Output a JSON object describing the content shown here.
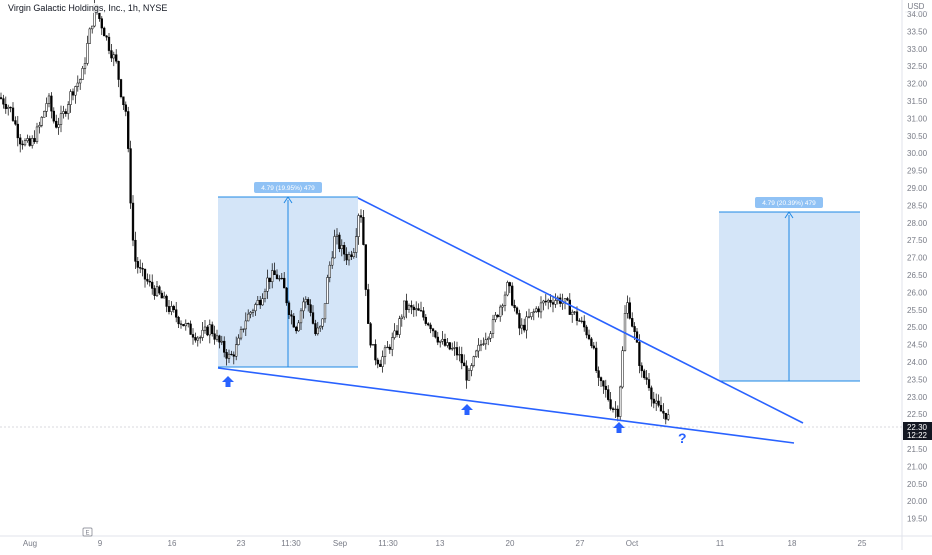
{
  "header": {
    "symbol_title": "Virgin Galactic Holdings, Inc., 1h, NYSE"
  },
  "price_axis": {
    "currency": "USD",
    "last_price": "22.30",
    "countdown": "12:22"
  },
  "colors": {
    "accent": "#2962ff",
    "measure_fill": "#cfe2f7",
    "measure_line": "#1e88e5",
    "candle": "#000000",
    "price_tag": "#131722"
  },
  "chart_data": {
    "type": "candlestick",
    "title": "Virgin Galactic Holdings, Inc., 1h, NYSE",
    "ylim": [
      19.2,
      35.0
    ],
    "y_ticks": [
      "34.00",
      "33.50",
      "33.00",
      "32.50",
      "32.00",
      "31.50",
      "31.00",
      "30.50",
      "30.00",
      "29.50",
      "29.00",
      "28.50",
      "28.00",
      "27.50",
      "27.00",
      "26.50",
      "26.00",
      "25.50",
      "25.00",
      "24.50",
      "24.00",
      "23.50",
      "23.00",
      "22.50",
      "22.00",
      "21.50",
      "21.00",
      "20.50",
      "20.00",
      "19.50"
    ],
    "x_ticks": [
      "Aug",
      "9",
      "16",
      "23",
      "11:30",
      "Sep",
      "11:30",
      "13",
      "20",
      "27",
      "Oct",
      "11",
      "18",
      "25"
    ],
    "last_price": 22.3,
    "price_path": [
      {
        "x": 0,
        "p": 31.6
      },
      {
        "x": 10,
        "p": 31.3
      },
      {
        "x": 20,
        "p": 30.4
      },
      {
        "x": 30,
        "p": 30.2
      },
      {
        "x": 40,
        "p": 30.8
      },
      {
        "x": 48,
        "p": 31.6
      },
      {
        "x": 55,
        "p": 30.8
      },
      {
        "x": 62,
        "p": 31.0
      },
      {
        "x": 72,
        "p": 31.8
      },
      {
        "x": 82,
        "p": 32.2
      },
      {
        "x": 88,
        "p": 33.2
      },
      {
        "x": 95,
        "p": 34.2
      },
      {
        "x": 103,
        "p": 33.6
      },
      {
        "x": 110,
        "p": 33.0
      },
      {
        "x": 116,
        "p": 32.6
      },
      {
        "x": 122,
        "p": 31.6
      },
      {
        "x": 126,
        "p": 31.2
      },
      {
        "x": 130,
        "p": 29.0
      },
      {
        "x": 134,
        "p": 27.0
      },
      {
        "x": 140,
        "p": 26.6
      },
      {
        "x": 150,
        "p": 26.2
      },
      {
        "x": 160,
        "p": 25.9
      },
      {
        "x": 170,
        "p": 25.5
      },
      {
        "x": 180,
        "p": 25.2
      },
      {
        "x": 190,
        "p": 24.9
      },
      {
        "x": 200,
        "p": 24.7
      },
      {
        "x": 210,
        "p": 25.0
      },
      {
        "x": 218,
        "p": 24.6
      },
      {
        "x": 225,
        "p": 24.3
      },
      {
        "x": 230,
        "p": 24.1
      },
      {
        "x": 238,
        "p": 24.5
      },
      {
        "x": 245,
        "p": 25.2
      },
      {
        "x": 252,
        "p": 25.5
      },
      {
        "x": 260,
        "p": 25.8
      },
      {
        "x": 268,
        "p": 26.4
      },
      {
        "x": 276,
        "p": 26.5
      },
      {
        "x": 283,
        "p": 26.2
      },
      {
        "x": 290,
        "p": 25.4
      },
      {
        "x": 296,
        "p": 25.0
      },
      {
        "x": 304,
        "p": 25.8
      },
      {
        "x": 310,
        "p": 25.6
      },
      {
        "x": 315,
        "p": 24.8
      },
      {
        "x": 322,
        "p": 25.0
      },
      {
        "x": 328,
        "p": 26.5
      },
      {
        "x": 335,
        "p": 27.6
      },
      {
        "x": 342,
        "p": 27.2
      },
      {
        "x": 348,
        "p": 27.0
      },
      {
        "x": 354,
        "p": 27.3
      },
      {
        "x": 360,
        "p": 28.6
      },
      {
        "x": 364,
        "p": 27.2
      },
      {
        "x": 368,
        "p": 25.0
      },
      {
        "x": 374,
        "p": 24.2
      },
      {
        "x": 380,
        "p": 24.0
      },
      {
        "x": 388,
        "p": 24.4
      },
      {
        "x": 396,
        "p": 24.8
      },
      {
        "x": 404,
        "p": 25.6
      },
      {
        "x": 412,
        "p": 25.5
      },
      {
        "x": 420,
        "p": 25.4
      },
      {
        "x": 430,
        "p": 25.1
      },
      {
        "x": 440,
        "p": 24.6
      },
      {
        "x": 448,
        "p": 24.4
      },
      {
        "x": 456,
        "p": 24.3
      },
      {
        "x": 462,
        "p": 24.0
      },
      {
        "x": 468,
        "p": 23.5
      },
      {
        "x": 476,
        "p": 24.2
      },
      {
        "x": 484,
        "p": 24.7
      },
      {
        "x": 492,
        "p": 25.0
      },
      {
        "x": 500,
        "p": 25.6
      },
      {
        "x": 508,
        "p": 26.2
      },
      {
        "x": 514,
        "p": 25.6
      },
      {
        "x": 520,
        "p": 24.9
      },
      {
        "x": 528,
        "p": 25.2
      },
      {
        "x": 536,
        "p": 25.5
      },
      {
        "x": 544,
        "p": 25.7
      },
      {
        "x": 552,
        "p": 25.8
      },
      {
        "x": 560,
        "p": 25.8
      },
      {
        "x": 568,
        "p": 25.6
      },
      {
        "x": 576,
        "p": 25.3
      },
      {
        "x": 584,
        "p": 25.0
      },
      {
        "x": 592,
        "p": 24.6
      },
      {
        "x": 598,
        "p": 23.4
      },
      {
        "x": 605,
        "p": 23.2
      },
      {
        "x": 612,
        "p": 22.7
      },
      {
        "x": 618,
        "p": 22.6
      },
      {
        "x": 622,
        "p": 24.0
      },
      {
        "x": 626,
        "p": 25.8
      },
      {
        "x": 630,
        "p": 25.4
      },
      {
        "x": 636,
        "p": 24.6
      },
      {
        "x": 642,
        "p": 23.6
      },
      {
        "x": 648,
        "p": 23.5
      },
      {
        "x": 654,
        "p": 22.8
      },
      {
        "x": 660,
        "p": 22.6
      },
      {
        "x": 666,
        "p": 22.5
      },
      {
        "x": 670,
        "p": 22.3
      }
    ],
    "annotations": [
      {
        "type": "measure",
        "label": "4.79 (19.95%) 479"
      },
      {
        "type": "measure",
        "label": "4.79 (20.39%) 479"
      },
      {
        "type": "trendline",
        "name": "upper"
      },
      {
        "type": "trendline",
        "name": "lower"
      },
      {
        "type": "arrow-up"
      },
      {
        "type": "arrow-up"
      },
      {
        "type": "arrow-up"
      },
      {
        "type": "text",
        "label": "?"
      }
    ]
  }
}
